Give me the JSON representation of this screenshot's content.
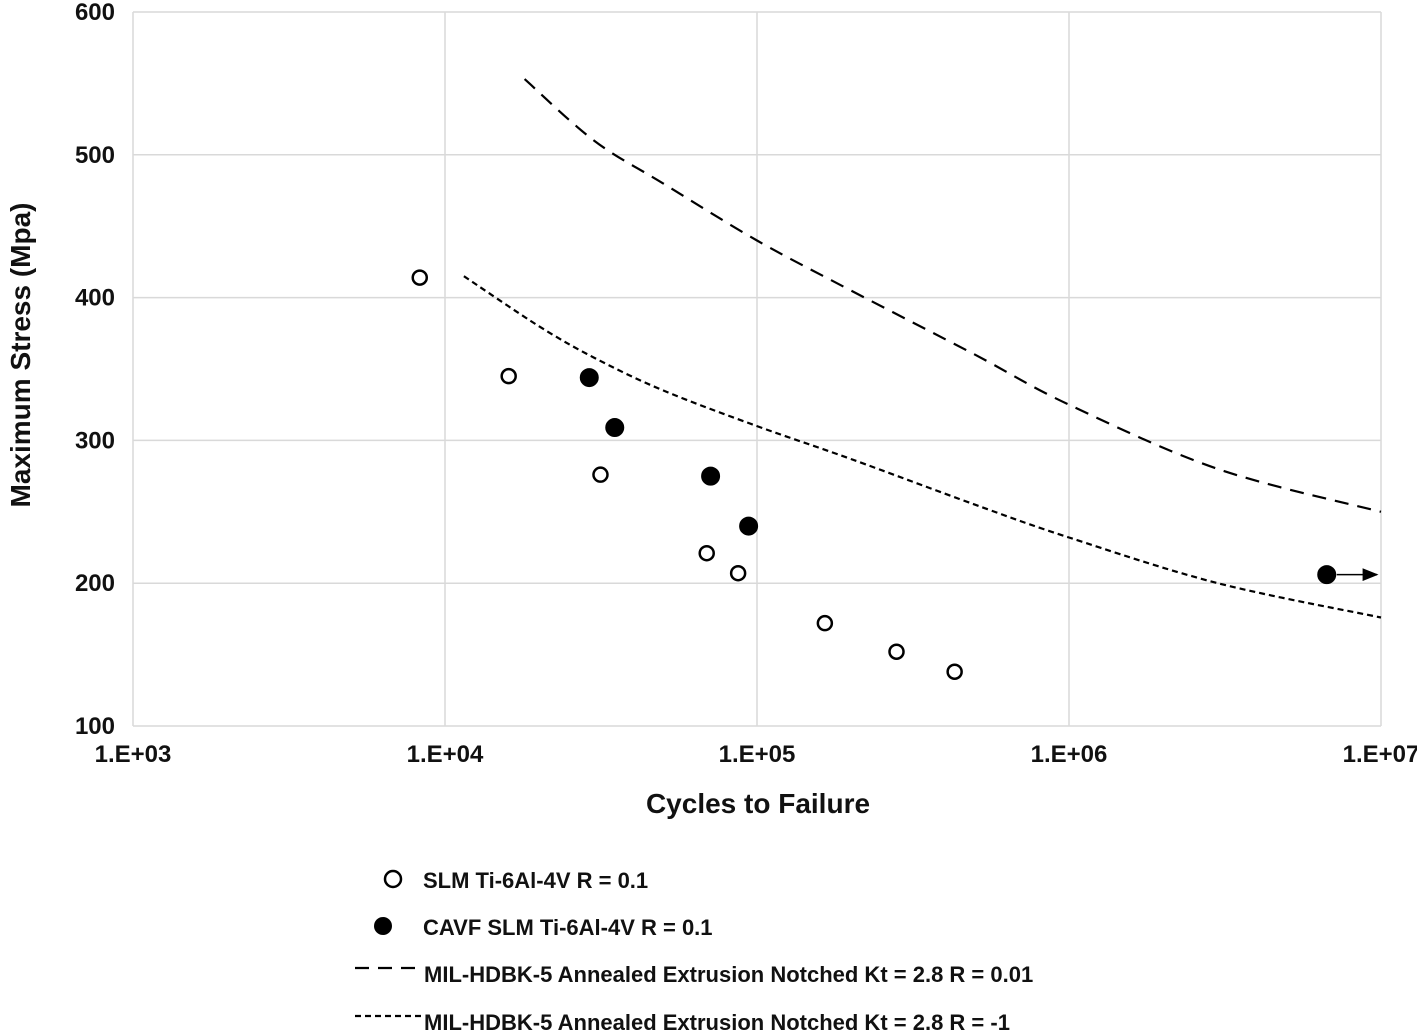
{
  "chart_data": {
    "type": "scatter",
    "xlabel": "Cycles to Failure",
    "ylabel": "Maximum Stress (Mpa)",
    "xscale": "log",
    "xlim": [
      1000,
      10000000
    ],
    "ylim": [
      100,
      600
    ],
    "x_ticks": [
      "1.E+03",
      "1.E+04",
      "1.E+05",
      "1.E+06",
      "1.E+07"
    ],
    "y_ticks": [
      "100",
      "200",
      "300",
      "400",
      "500",
      "600"
    ],
    "grid": true,
    "legend_position": "bottom",
    "series": [
      {
        "name": "SLM Ti-6Al-4V R = 0.1",
        "style": "open-circle",
        "color": "#000000",
        "points": [
          [
            8300,
            414
          ],
          [
            16000,
            345
          ],
          [
            31500,
            276
          ],
          [
            69000,
            221
          ],
          [
            87000,
            207
          ],
          [
            165000,
            172
          ],
          [
            280000,
            152
          ],
          [
            430000,
            138
          ]
        ]
      },
      {
        "name": "CAVF SLM Ti-6Al-4V R = 0.1",
        "style": "filled-circle",
        "color": "#000000",
        "points": [
          [
            29000,
            344
          ],
          [
            35000,
            309
          ],
          [
            71000,
            275
          ],
          [
            94000,
            240
          ],
          [
            6700000,
            206
          ]
        ],
        "runout_arrow_index": 4
      },
      {
        "name": "MIL-HDBK-5 Annealed Extrusion Notched Kt = 2.8 R = 0.01",
        "style": "long-dash",
        "color": "#000000",
        "points": [
          [
            18000,
            553
          ],
          [
            30000,
            510
          ],
          [
            50000,
            480
          ],
          [
            100000,
            440
          ],
          [
            200000,
            405
          ],
          [
            500000,
            360
          ],
          [
            1000000,
            325
          ],
          [
            3000000,
            280
          ],
          [
            10000000,
            250
          ]
        ]
      },
      {
        "name": "MIL-HDBK-5 Annealed Extrusion Notched Kt = 2.8 R = -1",
        "style": "short-dash",
        "color": "#000000",
        "points": [
          [
            11500,
            415
          ],
          [
            20000,
            380
          ],
          [
            30000,
            358
          ],
          [
            50000,
            335
          ],
          [
            100000,
            310
          ],
          [
            200000,
            287
          ],
          [
            500000,
            255
          ],
          [
            1000000,
            232
          ],
          [
            3000000,
            200
          ],
          [
            10000000,
            176
          ]
        ]
      }
    ]
  }
}
